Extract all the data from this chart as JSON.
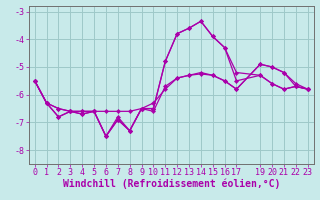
{
  "xlabel": "Windchill (Refroidissement éolien,°C)",
  "bg_color": "#c8eaea",
  "line_color": "#aa00aa",
  "grid_color": "#9ec8c8",
  "series": [
    {
      "x": [
        0,
        1,
        2,
        3,
        4,
        5,
        6,
        7,
        8,
        9,
        10,
        11,
        12,
        13,
        14,
        15,
        16,
        17,
        19,
        20,
        21,
        22,
        23
      ],
      "y": [
        -5.5,
        -6.3,
        -6.5,
        -6.6,
        -6.6,
        -6.6,
        -6.6,
        -6.6,
        -6.6,
        -6.5,
        -6.3,
        -5.8,
        -5.4,
        -5.3,
        -5.2,
        -5.3,
        -5.5,
        -5.8,
        -4.9,
        -5.0,
        -5.2,
        -5.6,
        -5.8
      ]
    },
    {
      "x": [
        0,
        1,
        2,
        3,
        4,
        5,
        6,
        7,
        8,
        9,
        10,
        11,
        12,
        13,
        14,
        15,
        16,
        17,
        19,
        20,
        21,
        22,
        23
      ],
      "y": [
        -5.5,
        -6.3,
        -6.8,
        -6.6,
        -6.7,
        -6.6,
        -7.5,
        -6.9,
        -7.3,
        -6.5,
        -6.5,
        -4.8,
        -3.8,
        -3.6,
        -3.35,
        -3.9,
        -4.3,
        -5.2,
        -5.3,
        -5.6,
        -5.8,
        -5.7,
        -5.8
      ]
    },
    {
      "x": [
        0,
        1,
        2,
        3,
        4,
        5,
        6,
        7,
        8,
        9,
        10,
        11,
        12,
        13,
        14,
        15,
        16,
        17,
        19,
        20,
        21,
        22,
        23
      ],
      "y": [
        -5.5,
        -6.3,
        -6.8,
        -6.6,
        -6.7,
        -6.6,
        -7.5,
        -6.9,
        -7.3,
        -6.5,
        -6.5,
        -4.8,
        -3.8,
        -3.6,
        -3.35,
        -3.9,
        -4.3,
        -5.5,
        -5.3,
        -5.6,
        -5.8,
        -5.7,
        -5.8
      ]
    },
    {
      "x": [
        0,
        1,
        2,
        3,
        4,
        5,
        6,
        7,
        8,
        9,
        10,
        11,
        12,
        13,
        14,
        15,
        16,
        17,
        19,
        20,
        21,
        22,
        23
      ],
      "y": [
        -5.5,
        -6.3,
        -6.5,
        -6.6,
        -6.6,
        -6.6,
        -7.5,
        -6.8,
        -7.3,
        -6.5,
        -6.6,
        -5.7,
        -5.4,
        -5.3,
        -5.25,
        -5.3,
        -5.5,
        -5.8,
        -4.9,
        -5.0,
        -5.2,
        -5.7,
        -5.8
      ]
    }
  ],
  "xlim": [
    -0.5,
    23.5
  ],
  "ylim": [
    -8.5,
    -2.8
  ],
  "xticks": [
    0,
    1,
    2,
    3,
    4,
    5,
    6,
    7,
    8,
    9,
    10,
    11,
    12,
    13,
    14,
    15,
    16,
    17,
    19,
    20,
    21,
    22,
    23
  ],
  "yticks": [
    -8,
    -7,
    -6,
    -5,
    -4,
    -3
  ],
  "tick_fontsize": 6.0,
  "xlabel_fontsize": 7.0,
  "marker_size": 2.2,
  "linewidth": 0.9
}
